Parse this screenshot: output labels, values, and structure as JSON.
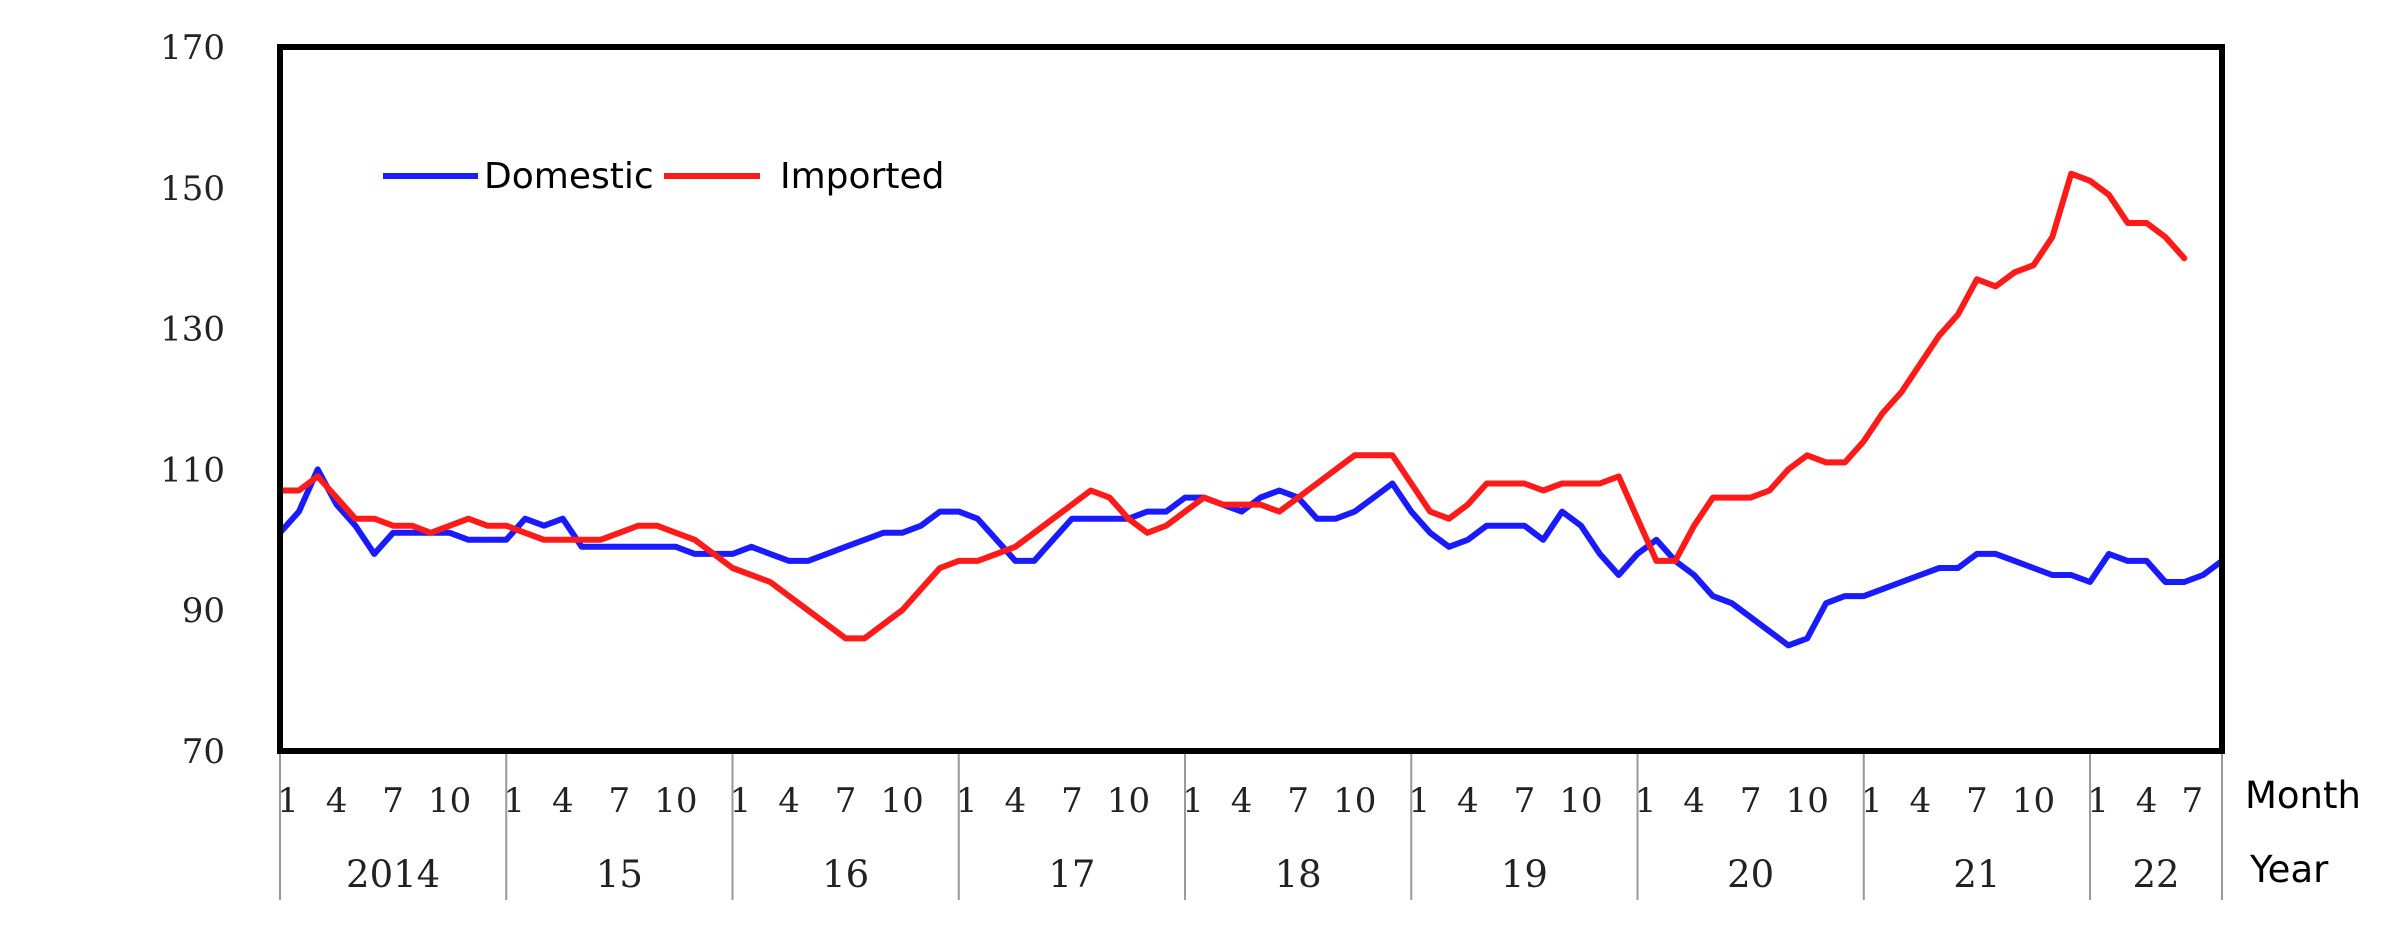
{
  "chart_data": {
    "type": "line",
    "title": "",
    "ylim": [
      70,
      170
    ],
    "yticks": [
      70,
      90,
      110,
      130,
      150,
      170
    ],
    "x_axis_label_month": "Month",
    "x_axis_label_year": "Year",
    "month_tick_labels": [
      "1",
      "4",
      "7",
      "10"
    ],
    "last_year_month_tick_labels": [
      "1",
      "4",
      "7"
    ],
    "years": [
      "2014",
      "15",
      "16",
      "17",
      "18",
      "19",
      "20",
      "21",
      "22"
    ],
    "grid": false,
    "legend_position": "top-left",
    "colors": {
      "Domestic": "#1a1aff",
      "Imported": "#ff1a1a"
    },
    "series": [
      {
        "name": "Domestic",
        "values": [
          101,
          104,
          110,
          105,
          102,
          98,
          101,
          101,
          101,
          101,
          100,
          100,
          100,
          103,
          102,
          103,
          99,
          99,
          99,
          99,
          99,
          99,
          98,
          98,
          98,
          99,
          98,
          97,
          97,
          98,
          99,
          100,
          101,
          101,
          102,
          104,
          104,
          103,
          100,
          97,
          97,
          100,
          103,
          103,
          103,
          103,
          104,
          104,
          106,
          106,
          105,
          104,
          106,
          107,
          106,
          103,
          103,
          104,
          106,
          108,
          104,
          101,
          99,
          100,
          102,
          102,
          102,
          100,
          104,
          102,
          98,
          95,
          98,
          100,
          97,
          95,
          92,
          91,
          89,
          87,
          85,
          86,
          91,
          92,
          92,
          93,
          94,
          95,
          96,
          96,
          98,
          98,
          97,
          96,
          95,
          95,
          94,
          98,
          97,
          97,
          94,
          94,
          95,
          97
        ]
      },
      {
        "name": "Imported",
        "values": [
          107,
          107,
          109,
          106,
          103,
          103,
          102,
          102,
          101,
          102,
          103,
          102,
          102,
          101,
          100,
          100,
          100,
          100,
          101,
          102,
          102,
          101,
          100,
          98,
          96,
          95,
          94,
          92,
          90,
          88,
          86,
          86,
          88,
          90,
          93,
          96,
          97,
          97,
          98,
          99,
          101,
          103,
          105,
          107,
          106,
          103,
          101,
          102,
          104,
          106,
          105,
          105,
          105,
          104,
          106,
          108,
          110,
          112,
          112,
          112,
          108,
          104,
          103,
          105,
          108,
          108,
          108,
          107,
          108,
          108,
          108,
          109,
          103,
          97,
          97,
          102,
          106,
          106,
          106,
          107,
          110,
          112,
          111,
          111,
          114,
          118,
          121,
          125,
          129,
          132,
          137,
          136,
          138,
          139,
          143,
          152,
          151,
          149,
          145,
          145,
          143,
          140
        ]
      }
    ]
  }
}
